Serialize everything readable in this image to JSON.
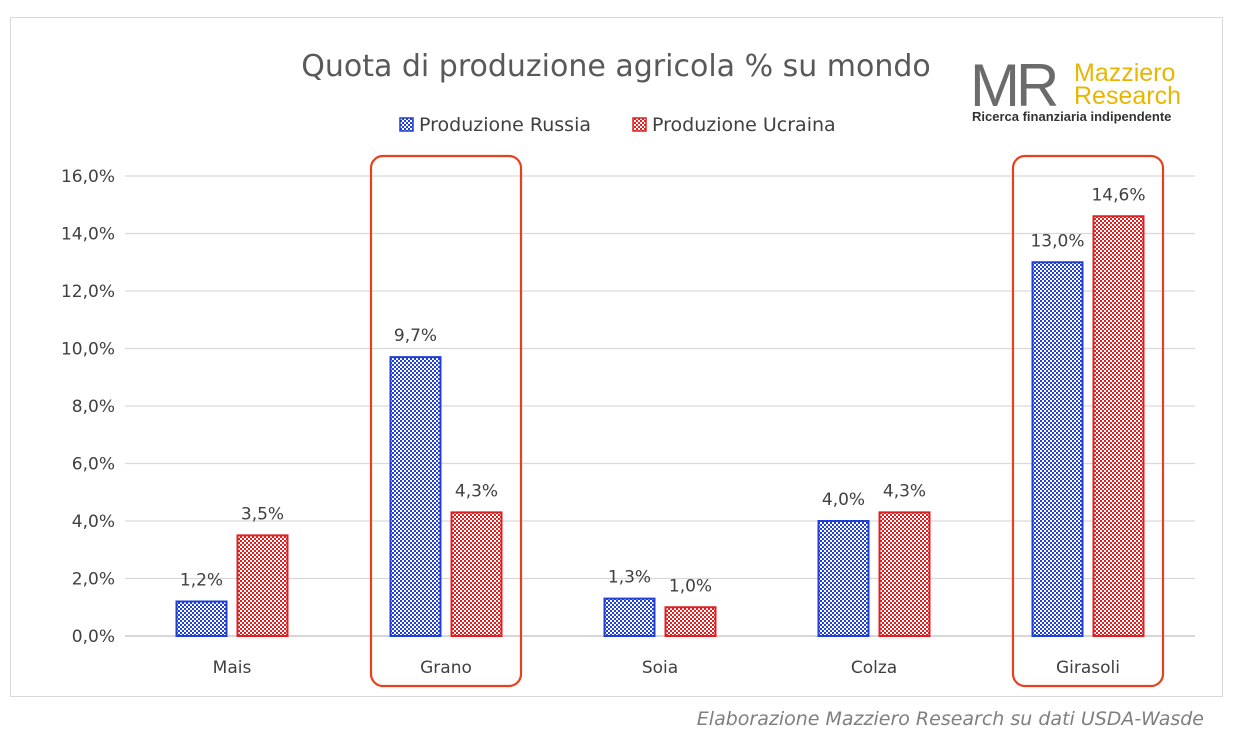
{
  "chart_data": {
    "type": "bar",
    "title": "Quota di produzione agricola % su mondo",
    "categories": [
      "Mais",
      "Grano",
      "Soia",
      "Colza",
      "Girasoli"
    ],
    "series": [
      {
        "name": "Produzione Russia",
        "values": [
          1.2,
          9.7,
          1.3,
          4.0,
          13.0
        ],
        "labels": [
          "1,2%",
          "9,7%",
          "1,3%",
          "4,0%",
          "13,0%"
        ],
        "color": "#1f3fd6"
      },
      {
        "name": "Produzione Ucraina",
        "values": [
          3.5,
          4.3,
          1.0,
          4.3,
          14.6
        ],
        "labels": [
          "3,5%",
          "4,3%",
          "1,0%",
          "4,3%",
          "14,6%"
        ],
        "color": "#e02020"
      }
    ],
    "ylim": [
      0,
      16
    ],
    "yticks": [
      "0,0%",
      "2,0%",
      "4,0%",
      "6,0%",
      "8,0%",
      "10,0%",
      "12,0%",
      "14,0%",
      "16,0%"
    ],
    "grid": true,
    "legend": "top-center",
    "highlighted_categories": [
      "Grano",
      "Girasoli"
    ],
    "highlight_color": "#e8401c"
  },
  "logo": {
    "monogram": "MR",
    "name_line1": "Mazziero",
    "name_line2": "Research",
    "tagline": "Ricerca finanziaria indipendente"
  },
  "source_note": "Elaborazione Mazziero Research su dati USDA-Wasde"
}
